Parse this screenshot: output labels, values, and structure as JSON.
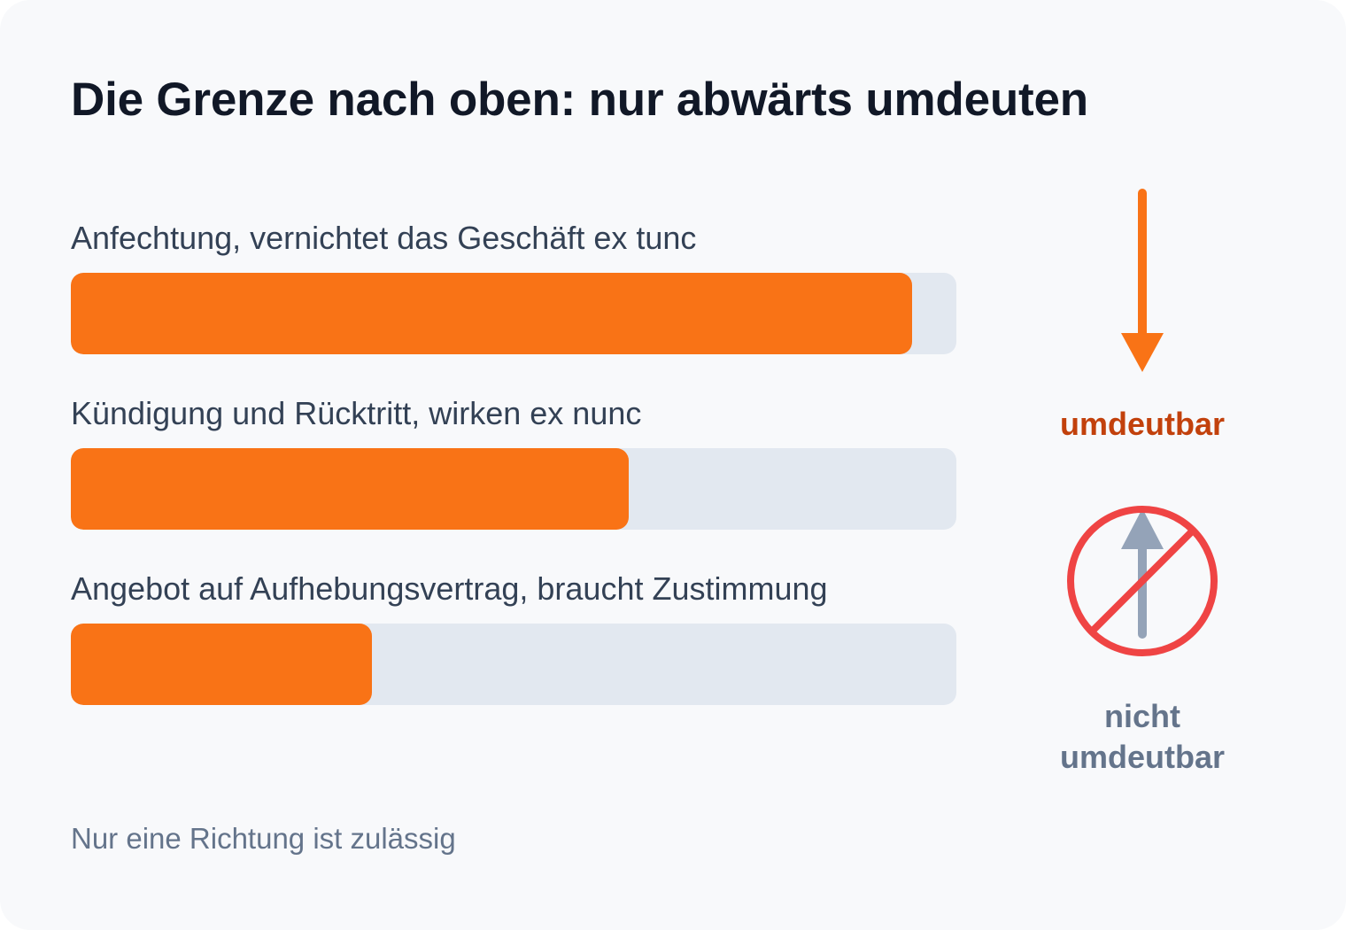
{
  "title": "Die Grenze nach oben: nur abwärts umdeuten",
  "bars": [
    {
      "label": "Anfechtung, vernichtet das Geschäft ex tunc",
      "value": 0.95
    },
    {
      "label": "Kündigung und Rücktritt, wirken ex nunc",
      "value": 0.63
    },
    {
      "label": "Angebot auf Aufhebungsvertrag, braucht Zustimmung",
      "value": 0.34
    }
  ],
  "side": {
    "allowed_label": "umdeutbar",
    "forbidden_label_line1": "nicht",
    "forbidden_label_line2": "umdeutbar",
    "down_arrow_icon": "arrow-down-icon",
    "prohibit_icon": "no-upward-arrow-icon"
  },
  "footnote": "Nur eine Richtung ist zulässig",
  "colors": {
    "accent": "#f97316",
    "allowed_text": "#c2410c",
    "forbidden_text": "#64748b",
    "prohibit_red": "#ef4444",
    "up_arrow_gray": "#94a3b8",
    "track": "#e2e8f0"
  }
}
